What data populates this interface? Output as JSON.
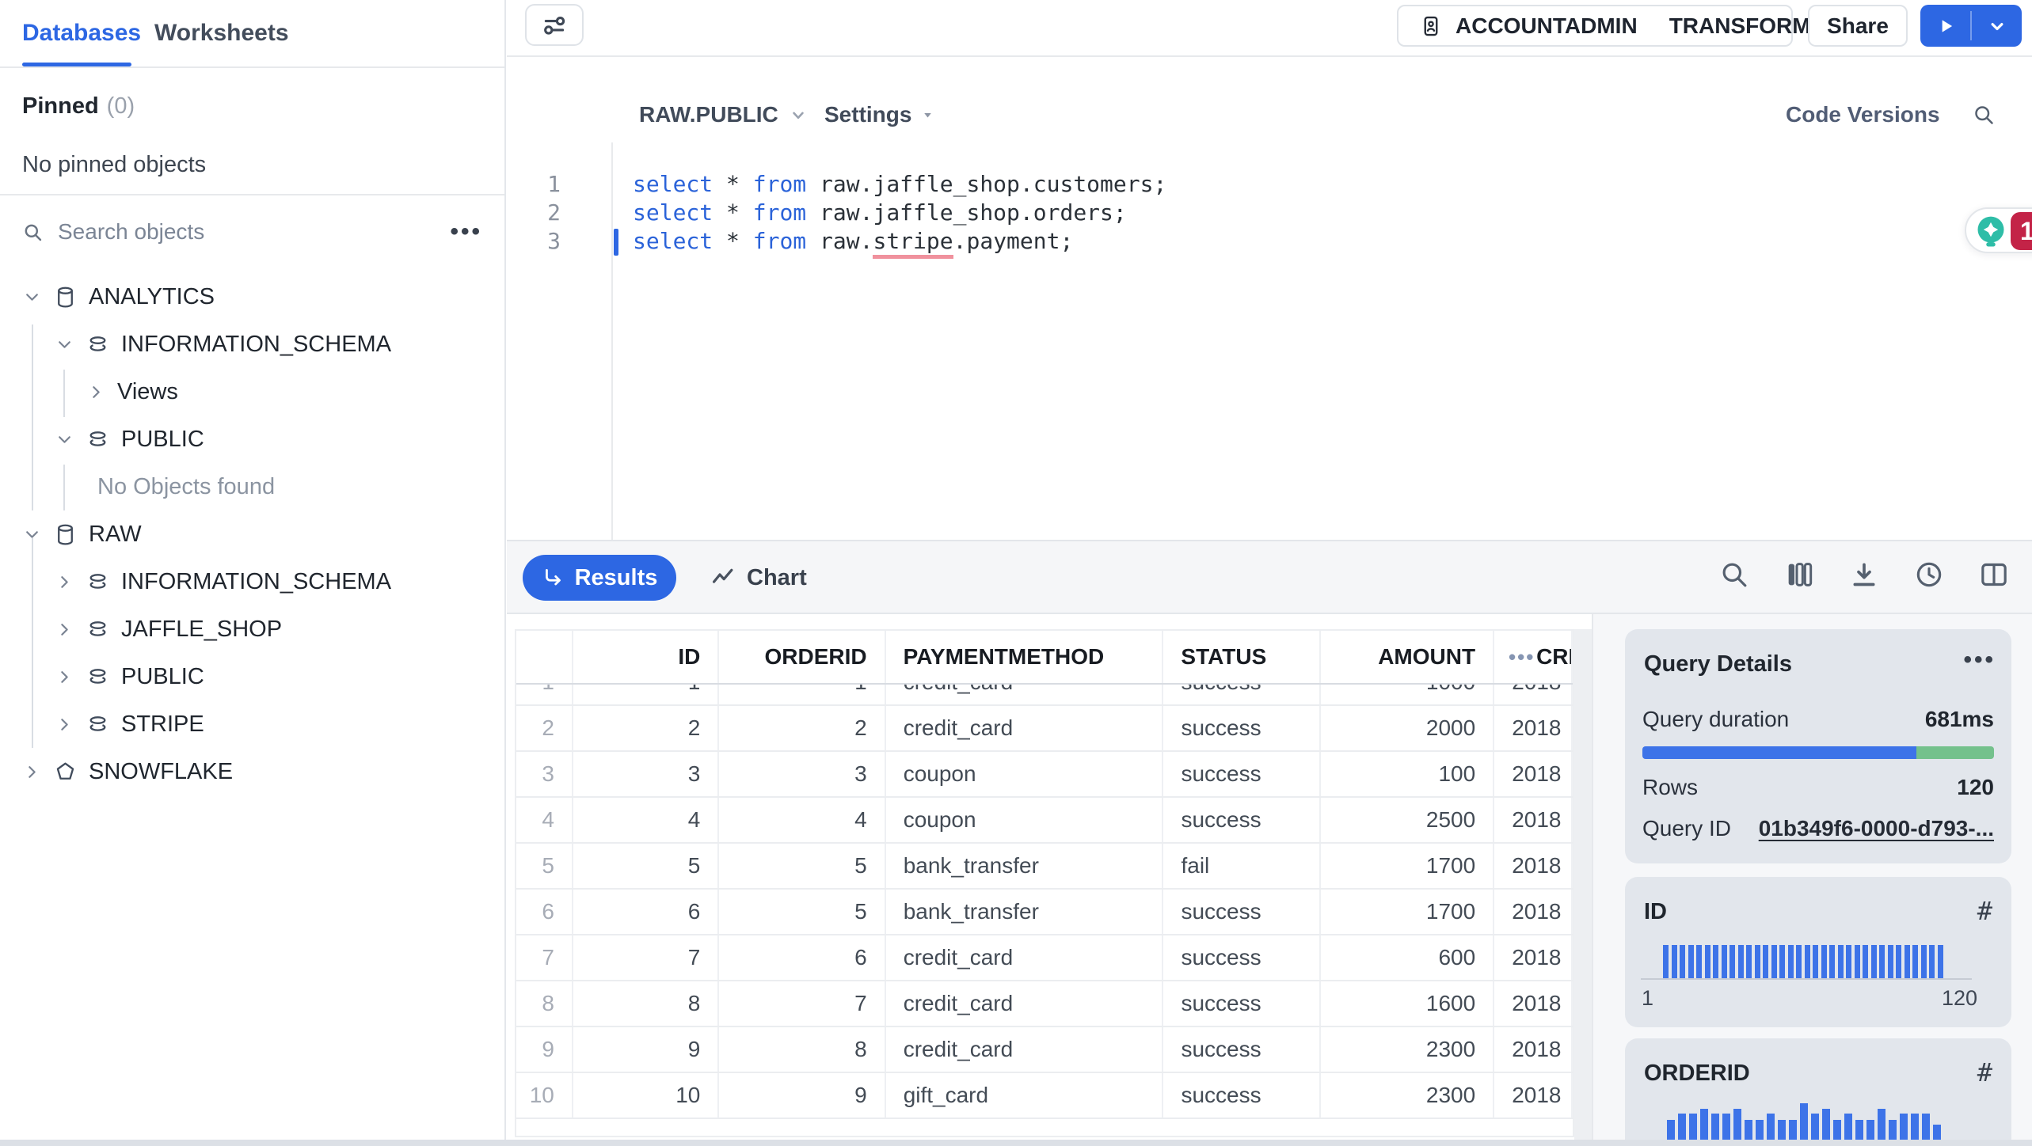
{
  "sidebar": {
    "tabs": [
      {
        "label": "Databases",
        "active": true
      },
      {
        "label": "Worksheets",
        "active": false
      }
    ],
    "pinned_label": "Pinned",
    "pinned_count": "(0)",
    "pinned_empty": "No pinned objects",
    "search_placeholder": "Search objects",
    "tree": [
      {
        "label": "ANALYTICS",
        "type": "database",
        "level": 0,
        "expand": "open"
      },
      {
        "label": "INFORMATION_SCHEMA",
        "type": "schema",
        "level": 1,
        "expand": "open"
      },
      {
        "label": "Views",
        "type": "folder",
        "level": 2,
        "expand": "closed"
      },
      {
        "label": "PUBLIC",
        "type": "schema",
        "level": 1,
        "expand": "open"
      },
      {
        "label": "No Objects found",
        "type": "empty",
        "level": 2
      },
      {
        "label": "RAW",
        "type": "database",
        "level": 0,
        "expand": "open"
      },
      {
        "label": "INFORMATION_SCHEMA",
        "type": "schema",
        "level": 1,
        "expand": "closed"
      },
      {
        "label": "JAFFLE_SHOP",
        "type": "schema",
        "level": 1,
        "expand": "closed"
      },
      {
        "label": "PUBLIC",
        "type": "schema",
        "level": 1,
        "expand": "closed"
      },
      {
        "label": "STRIPE",
        "type": "schema",
        "level": 1,
        "expand": "closed"
      },
      {
        "label": "SNOWFLAKE",
        "type": "app",
        "level": 0,
        "expand": "closed"
      }
    ]
  },
  "topbar": {
    "role": "ACCOUNTADMIN",
    "warehouse": "TRANSFORMING",
    "share_label": "Share"
  },
  "editor": {
    "context": "RAW.PUBLIC",
    "settings_label": "Settings",
    "code_versions_label": "Code Versions",
    "copilot_badge": "1",
    "lines": [
      {
        "num": "1",
        "parts": [
          {
            "t": "select",
            "c": "kw"
          },
          {
            "t": " * ",
            "c": "p"
          },
          {
            "t": "from",
            "c": "kw"
          },
          {
            "t": " raw.jaffle_shop.customers;",
            "c": "p"
          }
        ]
      },
      {
        "num": "2",
        "parts": [
          {
            "t": "select",
            "c": "kw"
          },
          {
            "t": " * ",
            "c": "p"
          },
          {
            "t": "from",
            "c": "kw"
          },
          {
            "t": " raw.jaffle_shop.orders;",
            "c": "p"
          }
        ]
      },
      {
        "num": "3",
        "cursor": true,
        "parts": [
          {
            "t": "select",
            "c": "kw"
          },
          {
            "t": " * ",
            "c": "p"
          },
          {
            "t": "from",
            "c": "kw"
          },
          {
            "t": " raw.",
            "c": "p"
          },
          {
            "t": "stripe",
            "c": "err"
          },
          {
            "t": ".payment;",
            "c": "p"
          }
        ]
      }
    ]
  },
  "results_bar": {
    "results_label": "Results",
    "chart_label": "Chart"
  },
  "table": {
    "columns": [
      "ID",
      "ORDERID",
      "PAYMENTMETHOD",
      "STATUS",
      "AMOUNT",
      "CREATED"
    ],
    "rows": [
      [
        "1",
        "1",
        "1",
        "credit_card",
        "success",
        "1000",
        "2018"
      ],
      [
        "2",
        "2",
        "2",
        "credit_card",
        "success",
        "2000",
        "2018"
      ],
      [
        "3",
        "3",
        "3",
        "coupon",
        "success",
        "100",
        "2018"
      ],
      [
        "4",
        "4",
        "4",
        "coupon",
        "success",
        "2500",
        "2018"
      ],
      [
        "5",
        "5",
        "5",
        "bank_transfer",
        "fail",
        "1700",
        "2018"
      ],
      [
        "6",
        "6",
        "5",
        "bank_transfer",
        "success",
        "1700",
        "2018"
      ],
      [
        "7",
        "7",
        "6",
        "credit_card",
        "success",
        "600",
        "2018"
      ],
      [
        "8",
        "8",
        "7",
        "credit_card",
        "success",
        "1600",
        "2018"
      ],
      [
        "9",
        "9",
        "8",
        "credit_card",
        "success",
        "2300",
        "2018"
      ],
      [
        "10",
        "10",
        "9",
        "gift_card",
        "success",
        "2300",
        "2018"
      ]
    ]
  },
  "query_details": {
    "title": "Query Details",
    "duration_label": "Query duration",
    "duration_value": "681ms",
    "duration_split": [
      0.78,
      0.22
    ],
    "rows_label": "Rows",
    "rows_value": "120",
    "query_id_label": "Query ID",
    "query_id_value": "01b349f6-0000-d793-..."
  },
  "column_panels": [
    {
      "title": "ID",
      "min_label": "1",
      "max_label": "120"
    },
    {
      "title": "ORDERID"
    }
  ],
  "chart_data": [
    {
      "type": "bar",
      "title": "ID",
      "x_range_labels": [
        "1",
        "120"
      ],
      "values": [
        1,
        1,
        1,
        1,
        1,
        1,
        1,
        1,
        1,
        1,
        1,
        1,
        1,
        1,
        1,
        1,
        1,
        1,
        1,
        1,
        1,
        1,
        1,
        1,
        1,
        1,
        1,
        1,
        1,
        1,
        1,
        1,
        1,
        1
      ]
    },
    {
      "type": "bar",
      "title": "ORDERID",
      "values": [
        0.55,
        0.72,
        0.72,
        0.85,
        0.72,
        0.72,
        0.85,
        0.55,
        0.55,
        0.72,
        0.55,
        0.55,
        1,
        0.72,
        0.85,
        0.55,
        0.72,
        0.55,
        0.55,
        0.85,
        0.55,
        0.72,
        0.72,
        0.72,
        0.42
      ]
    }
  ],
  "colors": {
    "accent": "#2d67e3",
    "badge_red": "#c32347",
    "bulb_teal": "#2ebda7",
    "status_green": "#62c08d",
    "duration_blue": "#3d73e8",
    "duration_green": "#74c18c",
    "error_underline": "#f0919d"
  }
}
